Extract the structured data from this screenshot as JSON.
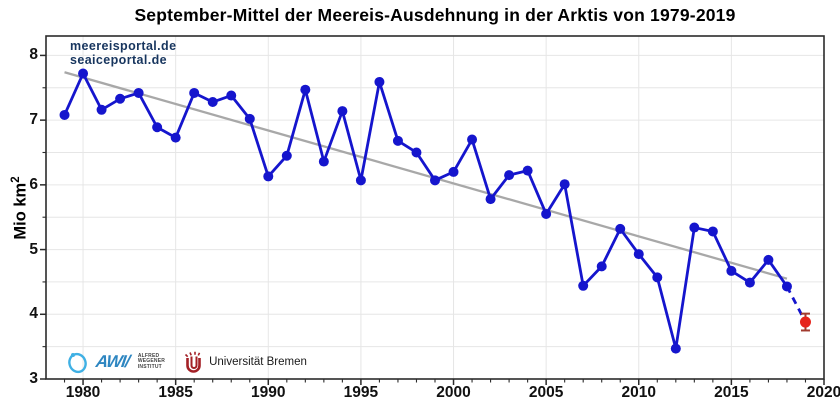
{
  "title": "September-Mittel der Meereis-Ausdehnung in der Arktis von 1979-2019",
  "watermark": {
    "line1": "meereisportal.de",
    "line2": "seaiceportal.de",
    "color": "#17355e"
  },
  "y_axis": {
    "label_base": "Mio km",
    "label_sup": "2",
    "ticks": [
      3,
      4,
      5,
      6,
      7,
      8
    ],
    "minor_step": 0.5
  },
  "x_axis": {
    "ticks": [
      1980,
      1985,
      1990,
      1995,
      2000,
      2005,
      2010,
      2015,
      2020
    ],
    "minor_step": 1
  },
  "logos": {
    "awi": {
      "mark": "AWI/",
      "lines": [
        "ALFRED",
        "WEGENER",
        "INSTITUT"
      ]
    },
    "bremen": {
      "label": "Universität Bremen"
    }
  },
  "colors": {
    "series": "#1515cd",
    "trend": "#a8a8a8",
    "final_point": "#e6231b",
    "error_bar": "#a23b2e",
    "grid": "#e6e6e6",
    "axis": "#2b2b2b",
    "awi_blue": "#3fb0e4",
    "bremen_red": "#a32026"
  },
  "chart_data": {
    "type": "line",
    "title": "September-Mittel der Meereis-Ausdehnung in der Arktis von 1979-2019",
    "xlabel": "",
    "ylabel": "Mio km²",
    "xlim": [
      1978,
      2020
    ],
    "ylim": [
      3,
      8.3
    ],
    "grid": true,
    "x": [
      1979,
      1980,
      1981,
      1982,
      1983,
      1984,
      1985,
      1986,
      1987,
      1988,
      1989,
      1990,
      1991,
      1992,
      1993,
      1994,
      1995,
      1996,
      1997,
      1998,
      1999,
      2000,
      2001,
      2002,
      2003,
      2004,
      2005,
      2006,
      2007,
      2008,
      2009,
      2010,
      2011,
      2012,
      2013,
      2014,
      2015,
      2016,
      2017,
      2018
    ],
    "values": [
      7.08,
      7.72,
      7.16,
      7.33,
      7.42,
      6.89,
      6.73,
      7.42,
      7.28,
      7.38,
      7.02,
      6.13,
      6.45,
      7.47,
      6.36,
      7.14,
      6.07,
      7.59,
      6.68,
      6.5,
      6.07,
      6.2,
      6.7,
      5.78,
      6.15,
      6.22,
      5.55,
      6.01,
      4.44,
      4.74,
      5.32,
      4.93,
      4.57,
      3.47,
      5.34,
      5.28,
      4.67,
      4.49,
      4.84,
      4.43
    ],
    "final_point": {
      "year": 2019,
      "value": 3.88,
      "error": 0.13,
      "style": "red-marker-with-errorbar",
      "connector": "dashed"
    },
    "trend": {
      "x": [
        1979,
        2018
      ],
      "values": [
        7.74,
        4.55
      ]
    },
    "legend": null
  }
}
